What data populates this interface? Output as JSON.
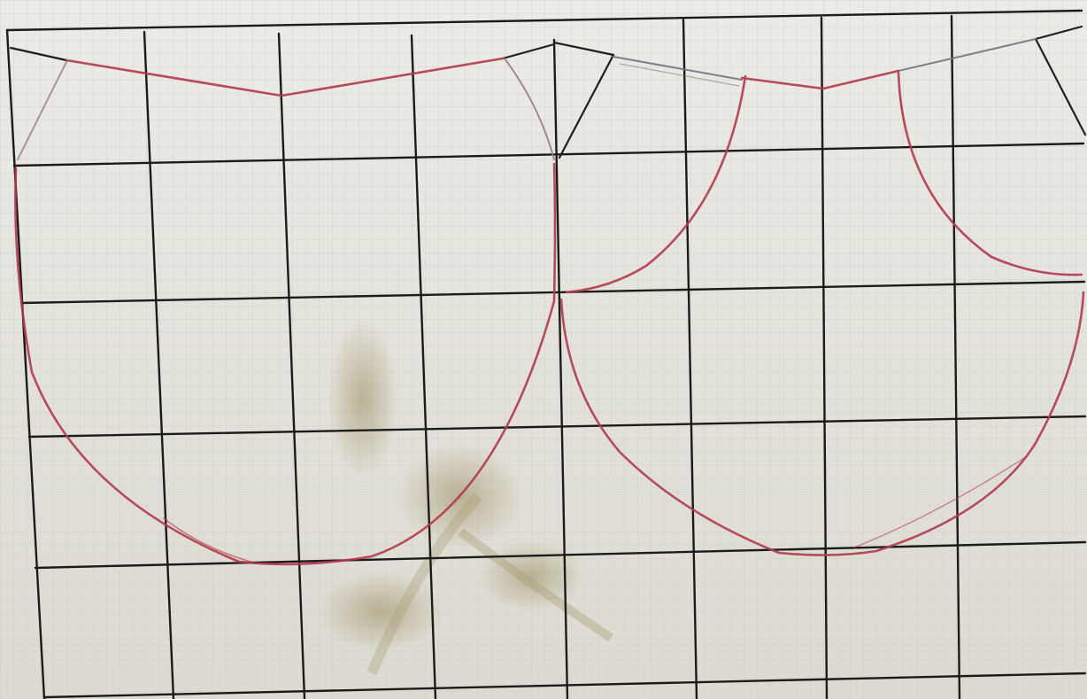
{
  "scene": {
    "subject": "pattern-drafting-sketch",
    "paper": "graph-paper",
    "colors": {
      "paper": "#e7e6e0",
      "fine_grid": "#c9c8c0",
      "main_grid": "#1c1c1c",
      "red_pencil": "#b13a4e",
      "grey_pencil": "#6d7780",
      "stain": "#9a8c5c"
    },
    "ink": {
      "main_grid_lines": "black",
      "curves": "red-pencil",
      "guide_lines": "grey-pencil"
    }
  }
}
